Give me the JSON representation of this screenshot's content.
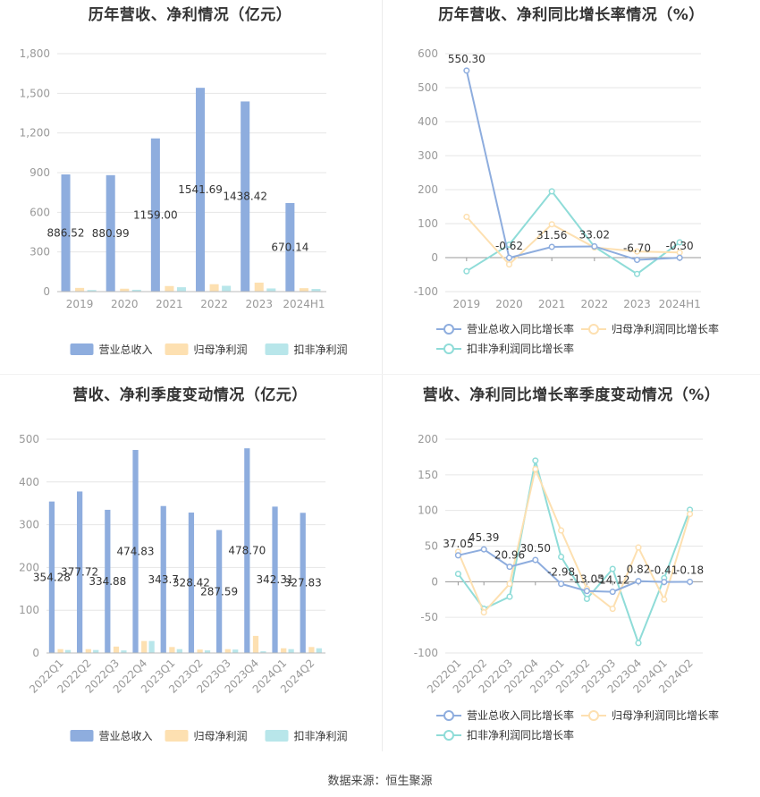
{
  "source_text": "数据来源：恒生聚源",
  "colors": {
    "revenue": "#8eadde",
    "net_profit": "#fde0b1",
    "deducted_profit": "#b8e6ea",
    "revenue_line": "#8eadde",
    "net_profit_line": "#fde0b1",
    "deducted_line": "#8fdcd8",
    "grid": "#e6e6e6",
    "tick": "#999999",
    "label": "#333333"
  },
  "chart_data": [
    {
      "id": "annual_bar",
      "type": "bar",
      "title": "历年营收、净利情况（亿元）",
      "categories": [
        "2019",
        "2020",
        "2021",
        "2022",
        "2023",
        "2024H1"
      ],
      "ylim": [
        0,
        1800
      ],
      "yticks": [
        0,
        300,
        600,
        900,
        1200,
        1500,
        1800
      ],
      "ytick_labels": [
        "0",
        "300",
        "600",
        "900",
        "1,200",
        "1,500",
        "1,800"
      ],
      "series": [
        {
          "name": "营业总收入",
          "values": [
            886.52,
            880.99,
            1159.0,
            1541.69,
            1438.42,
            670.14
          ]
        },
        {
          "name": "归母净利润",
          "values": [
            28,
            22,
            42,
            56,
            68,
            26
          ]
        },
        {
          "name": "扣非净利润",
          "values": [
            12,
            14,
            33,
            44,
            24,
            20
          ]
        }
      ],
      "data_labels": [
        "886.52",
        "880.99",
        "1159.00",
        "1541.69",
        "1438.42",
        "670.14"
      ],
      "grid": true,
      "legend_position": "bottom"
    },
    {
      "id": "annual_line",
      "type": "line",
      "title": "历年营收、净利同比增长率情况（%）",
      "categories": [
        "2019",
        "2020",
        "2021",
        "2022",
        "2023",
        "2024H1"
      ],
      "ylim": [
        -100,
        600
      ],
      "yticks": [
        -100,
        0,
        100,
        200,
        300,
        400,
        500,
        600
      ],
      "ytick_labels": [
        "-100",
        "0",
        "100",
        "200",
        "300",
        "400",
        "500",
        "600"
      ],
      "series": [
        {
          "name": "营业总收入同比增长率",
          "values": [
            550.3,
            -0.62,
            31.56,
            33.02,
            -6.7,
            -0.3
          ]
        },
        {
          "name": "归母净利润同比增长率",
          "values": [
            120,
            -20,
            98,
            30,
            18,
            15
          ]
        },
        {
          "name": "扣非净利润同比增长率",
          "values": [
            -40,
            38,
            195,
            32,
            -48,
            45
          ]
        }
      ],
      "data_labels": [
        "550.30",
        "-0.62",
        "31.56",
        "33.02",
        "-6.70",
        "-0.30"
      ],
      "grid": true,
      "legend_position": "bottom"
    },
    {
      "id": "quarter_bar",
      "type": "bar",
      "title": "营收、净利季度变动情况（亿元）",
      "categories": [
        "2022Q1",
        "2022Q2",
        "2022Q3",
        "2022Q4",
        "2023Q1",
        "2023Q2",
        "2023Q3",
        "2023Q4",
        "2024Q1",
        "2024Q2"
      ],
      "ylim": [
        0,
        500
      ],
      "yticks": [
        0,
        100,
        200,
        300,
        400,
        500
      ],
      "ytick_labels": [
        "0",
        "100",
        "200",
        "300",
        "400",
        "500"
      ],
      "series": [
        {
          "name": "营业总收入",
          "values": [
            354.28,
            377.72,
            334.88,
            474.83,
            343.7,
            328.42,
            287.59,
            478.7,
            342.31,
            327.83
          ]
        },
        {
          "name": "归母净利润",
          "values": [
            9,
            9,
            15,
            28,
            14,
            8,
            9,
            40,
            11,
            14
          ]
        },
        {
          "name": "扣非净利润",
          "values": [
            7,
            7,
            6,
            28,
            9,
            6,
            8,
            4,
            9,
            11
          ]
        }
      ],
      "data_labels": [
        "354.28",
        "377.72",
        "334.88",
        "474.83",
        "343.7",
        "328.42",
        "287.59",
        "478.70",
        "342.31",
        "327.83"
      ],
      "grid": true,
      "legend_position": "bottom"
    },
    {
      "id": "quarter_line",
      "type": "line",
      "title": "营收、净利同比增长率季度变动情况（%）",
      "categories": [
        "2022Q1",
        "2022Q2",
        "2022Q3",
        "2022Q4",
        "2023Q1",
        "2023Q2",
        "2023Q3",
        "2023Q4",
        "2024Q1",
        "2024Q2"
      ],
      "ylim": [
        -100,
        200
      ],
      "yticks": [
        -100,
        -50,
        0,
        50,
        100,
        150,
        200
      ],
      "ytick_labels": [
        "-100",
        "-50",
        "0",
        "50",
        "100",
        "150",
        "200"
      ],
      "series": [
        {
          "name": "营业总收入同比增长率",
          "values": [
            37.05,
            45.39,
            20.96,
            30.5,
            -2.98,
            -13.05,
            -14.12,
            0.82,
            -0.41,
            -0.18
          ]
        },
        {
          "name": "归母净利润同比增长率",
          "values": [
            42,
            -43,
            -3,
            158,
            72,
            -10,
            -38,
            48,
            -25,
            95
          ]
        },
        {
          "name": "扣非净利润同比增长率",
          "values": [
            11,
            -38,
            -21,
            170,
            35,
            -24,
            18,
            -86,
            5,
            101
          ]
        }
      ],
      "data_labels": [
        "37.05",
        "45.39",
        "20.96",
        "30.50",
        "-2.98",
        "-13.05",
        "-14.12",
        "0.82",
        "-0.41",
        "-0.18"
      ],
      "grid": true,
      "legend_position": "bottom"
    }
  ]
}
